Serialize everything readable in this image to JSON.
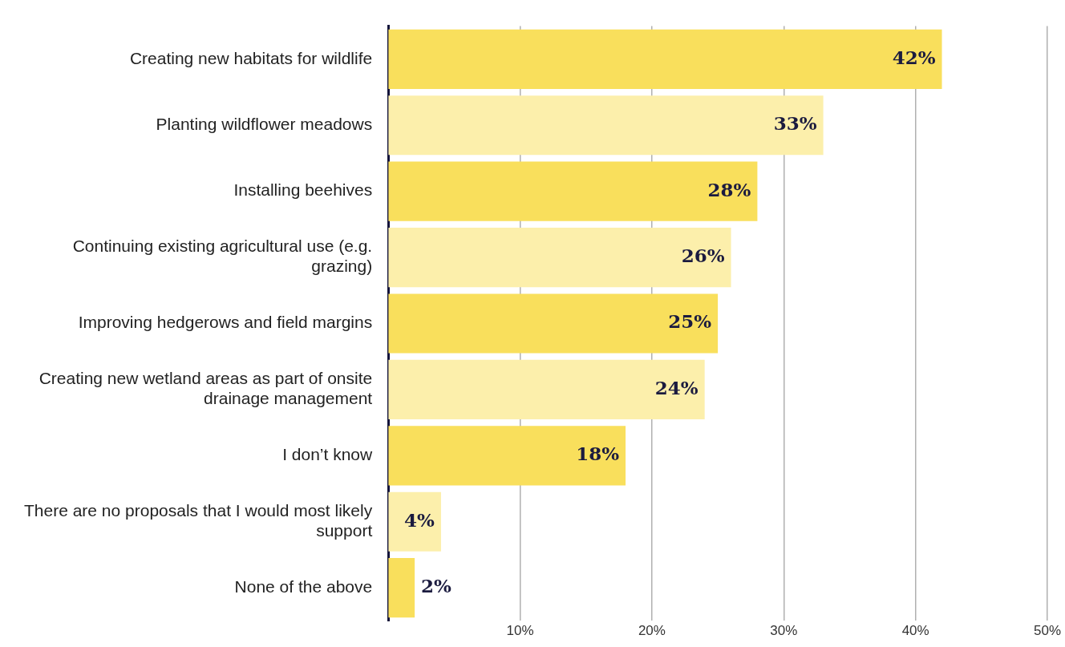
{
  "chart_data": {
    "type": "bar",
    "orientation": "horizontal",
    "categories": [
      "Creating new habitats for wildlife",
      "Planting wildflower meadows",
      "Installing beehives",
      "Continuing existing agricultural use (e.g. grazing)",
      "Improving hedgerows and field margins",
      "Creating new wetland areas as part of onsite drainage management",
      "I don’t know",
      "There are no proposals that I would most likely support",
      "None of the above"
    ],
    "values": [
      42,
      33,
      28,
      26,
      25,
      24,
      18,
      4,
      2
    ],
    "value_labels": [
      "42%",
      "33%",
      "28%",
      "26%",
      "25%",
      "24%",
      "18%",
      "4%",
      "2%"
    ],
    "colors": [
      "#f9df5c",
      "#fcefab",
      "#f9df5c",
      "#fcefab",
      "#f9df5c",
      "#fcefab",
      "#f9df5c",
      "#fcefab",
      "#f9df5c"
    ],
    "xlim": [
      0,
      50
    ],
    "xticks": [
      {
        "value": 10,
        "label": "10%"
      },
      {
        "value": 20,
        "label": "20%"
      },
      {
        "value": 30,
        "label": "30%"
      },
      {
        "value": 40,
        "label": "40%"
      },
      {
        "value": 50,
        "label": "50%"
      }
    ],
    "grid": "x",
    "legend": false
  }
}
